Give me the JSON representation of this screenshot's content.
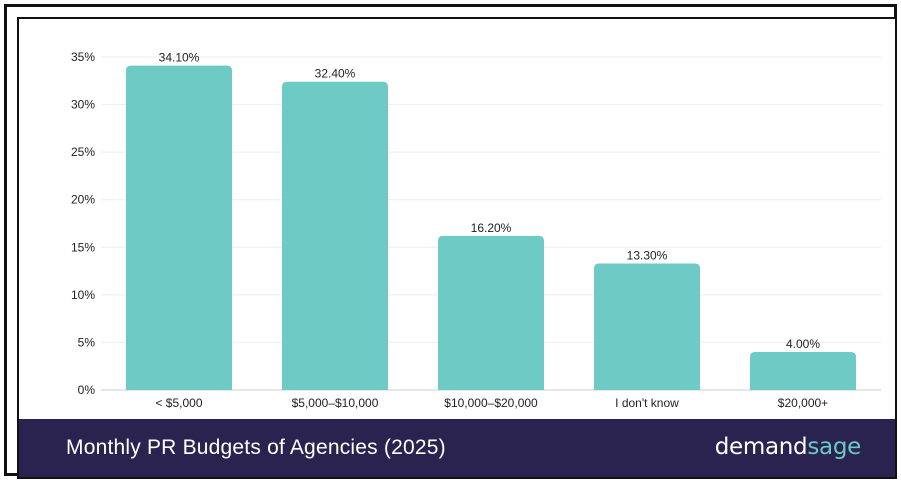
{
  "chart_data": {
    "type": "bar",
    "title": "Monthly PR Budgets of Agencies (2025)",
    "categories": [
      "< $5,000",
      "$5,000–$10,000",
      "$10,000–$20,000",
      "I don't know",
      "$20,000+"
    ],
    "values": [
      34.1,
      32.4,
      16.2,
      13.3,
      4.0
    ],
    "value_labels": [
      "34.10%",
      "32.40%",
      "16.20%",
      "13.30%",
      "4.00%"
    ],
    "yticks": [
      "0%",
      "5%",
      "10%",
      "15%",
      "20%",
      "25%",
      "30%",
      "35%"
    ],
    "ylim": [
      0,
      35
    ],
    "grid": true,
    "legend": "none",
    "bar_color": "#6ecac4"
  },
  "footer": {
    "title": "Monthly PR Budgets of Agencies (2025)",
    "brand_part1": "demand",
    "brand_part2": "sage"
  },
  "colors": {
    "footer_bg": "#2a2350",
    "brand_accent": "#6dc8c2"
  }
}
